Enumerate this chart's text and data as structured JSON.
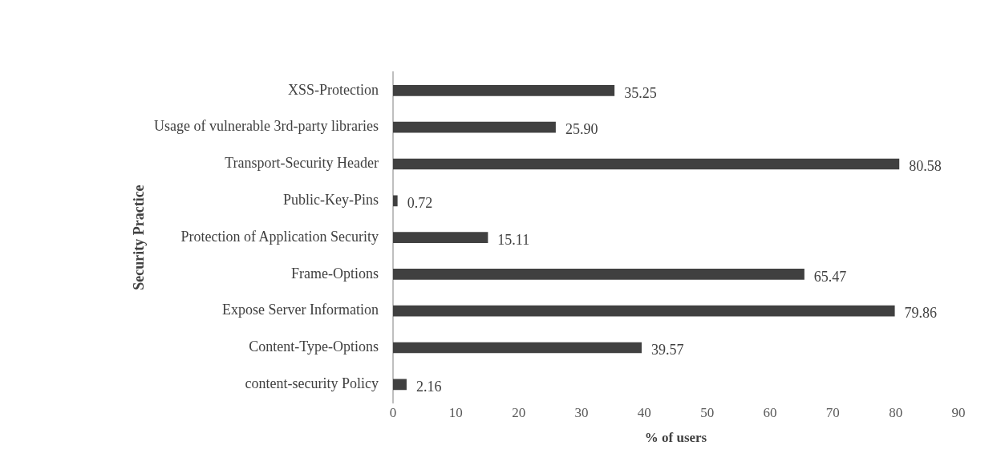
{
  "chart_data": {
    "type": "bar",
    "orientation": "horizontal",
    "categories": [
      "XSS-Protection",
      "Usage of vulnerable 3rd-party libraries",
      "Transport-Security Header",
      "Public-Key-Pins",
      "Protection of Application Security",
      "Frame-Options",
      "Expose Server Information",
      "Content-Type-Options",
      "content-security Policy"
    ],
    "values": [
      35.25,
      25.9,
      80.58,
      0.72,
      15.11,
      65.47,
      79.86,
      39.57,
      2.16
    ],
    "value_labels": [
      "35.25",
      "25.90",
      "80.58",
      "0.72",
      "15.11",
      "65.47",
      "79.86",
      "39.57",
      "2.16"
    ],
    "color": "#404040",
    "xlabel": "% of users",
    "ylabel": "Security Practice",
    "xlim": [
      0,
      90
    ],
    "xticks": [
      0,
      10,
      20,
      30,
      40,
      50,
      60,
      70,
      80,
      90
    ],
    "grid": false,
    "legend": false
  }
}
